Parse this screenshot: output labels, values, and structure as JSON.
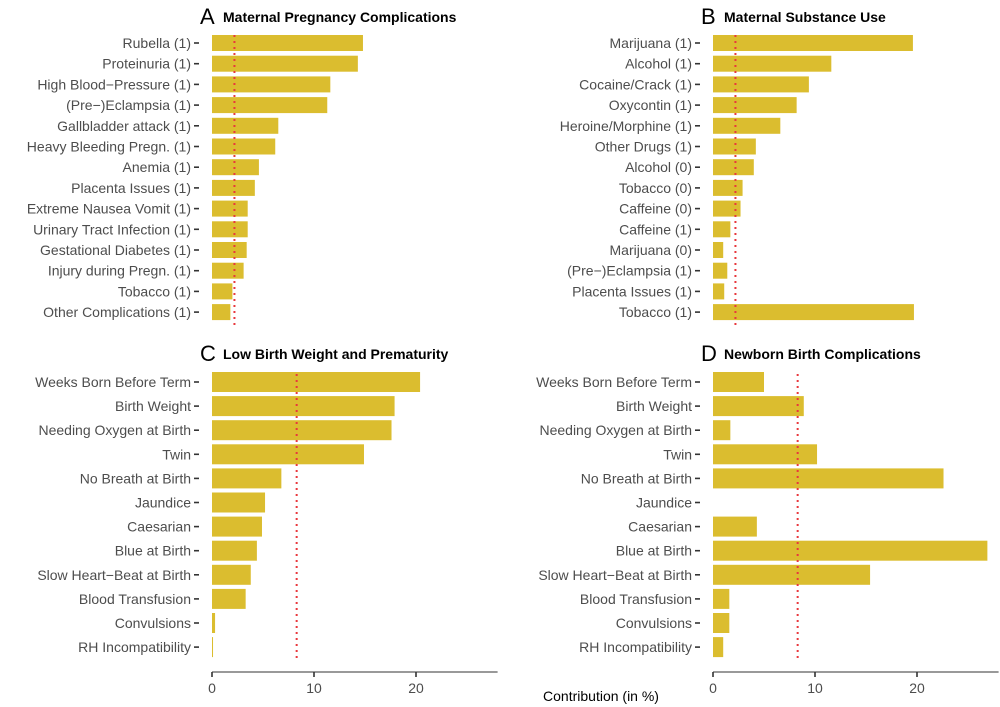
{
  "figure": {
    "xlabel": "Contribution (in %)",
    "bar_color": "#dbbd2f",
    "ref_color": "#e8383d",
    "axis_color": "#333333"
  },
  "chart_data": [
    {
      "type": "bar",
      "orientation": "horizontal",
      "letter": "A",
      "title": "Maternal Pregnancy Complications",
      "categories": [
        "Rubella (1)",
        "Proteinuria (1)",
        "High Blood−Pressure (1)",
        "(Pre−)Eclampsia (1)",
        "Gallbladder attack (1)",
        "Heavy Bleeding Pregn. (1)",
        "Anemia (1)",
        "Placenta Issues (1)",
        "Extreme Nausea Vomit (1)",
        "Urinary Tract Infection (1)",
        "Gestational Diabetes (1)",
        "Injury during Pregn. (1)",
        "Tobacco (1)",
        "Other Complications (1)"
      ],
      "values": [
        14.8,
        14.3,
        11.6,
        11.3,
        6.5,
        6.2,
        4.6,
        4.2,
        3.5,
        3.5,
        3.4,
        3.1,
        2.0,
        1.8
      ],
      "reference": 2.2,
      "xlim": [
        0,
        28
      ],
      "xticks": [],
      "xlabel": ""
    },
    {
      "type": "bar",
      "orientation": "horizontal",
      "letter": "B",
      "title": "Maternal Substance Use",
      "categories": [
        "Marijuana (1)",
        "Alcohol (1)",
        "Cocaine/Crack (1)",
        "Oxycontin (1)",
        "Heroine/Morphine (1)",
        "Other Drugs (1)",
        "Alcohol (0)",
        "Tobacco (0)",
        "Caffeine (0)",
        "Caffeine (1)",
        "Marijuana (0)",
        "(Pre−)Eclampsia (1)",
        "Placenta Issues (1)",
        "Tobacco (1)"
      ],
      "values": [
        19.6,
        11.6,
        9.4,
        8.2,
        6.6,
        4.2,
        4.0,
        2.9,
        2.7,
        1.7,
        1.0,
        1.4,
        1.1,
        19.7
      ],
      "reference": 2.2,
      "xlim": [
        0,
        28
      ],
      "xticks": [],
      "xlabel": ""
    },
    {
      "type": "bar",
      "orientation": "horizontal",
      "letter": "C",
      "title": "Low Birth Weight and Prematurity",
      "categories": [
        "Weeks Born Before Term",
        "Birth Weight",
        "Needing Oxygen at Birth",
        "Twin",
        "No Breath at Birth",
        "Jaundice",
        "Caesarian",
        "Blue at Birth",
        "Slow Heart−Beat at Birth",
        "Blood Transfusion",
        "Convulsions",
        "RH Incompatibility"
      ],
      "values": [
        20.4,
        17.9,
        17.6,
        14.9,
        6.8,
        5.2,
        4.9,
        4.4,
        3.8,
        3.3,
        0.3,
        0.1
      ],
      "reference": 8.3,
      "xlim": [
        0,
        28
      ],
      "xticks": [
        0,
        10,
        20
      ],
      "xlabel": ""
    },
    {
      "type": "bar",
      "orientation": "horizontal",
      "letter": "D",
      "title": "Newborn Birth Complications",
      "categories": [
        "Weeks Born Before Term",
        "Birth Weight",
        "Needing Oxygen at Birth",
        "Twin",
        "No Breath at Birth",
        "Jaundice",
        "Caesarian",
        "Blue at Birth",
        "Slow Heart−Beat at Birth",
        "Blood Transfusion",
        "Convulsions",
        "RH Incompatibility"
      ],
      "values": [
        5.0,
        8.9,
        1.7,
        10.2,
        22.6,
        0.0,
        4.3,
        26.9,
        15.4,
        1.6,
        1.6,
        1.0
      ],
      "reference": 8.3,
      "xlim": [
        0,
        28
      ],
      "xticks": [
        0,
        10,
        20
      ],
      "xlabel": ""
    }
  ]
}
